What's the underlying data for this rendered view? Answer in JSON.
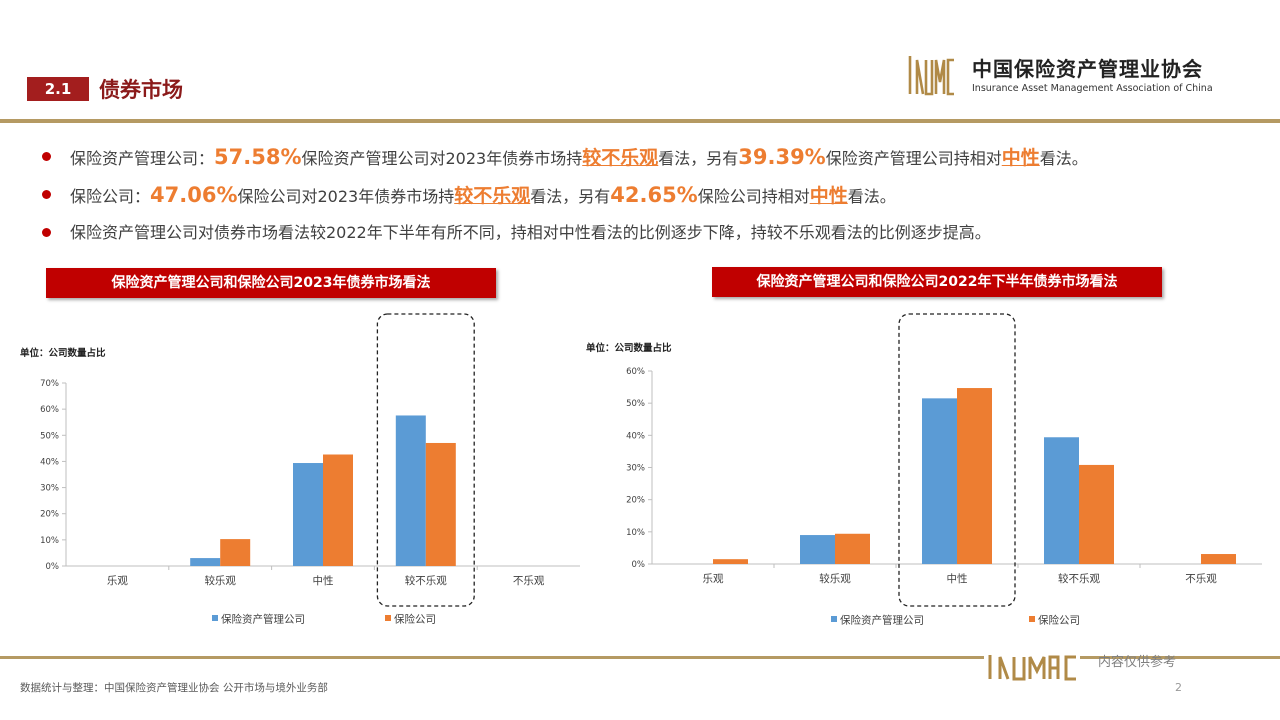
{
  "header": {
    "section_number": "2.1",
    "section_title": "债券市场",
    "logo_cn": "中国保险资产管理业协会",
    "logo_en": "Insurance Asset Management Association of China"
  },
  "bullets": [
    {
      "segments": [
        {
          "text": "保险资产管理公司：",
          "style": "plain"
        },
        {
          "text": "57.58%",
          "style": "num"
        },
        {
          "text": "保险资产管理公司对2023年债券市场持",
          "style": "plain"
        },
        {
          "text": "较不乐观",
          "style": "word"
        },
        {
          "text": "看法，另有",
          "style": "plain"
        },
        {
          "text": "39.39%",
          "style": "num"
        },
        {
          "text": "保险资产管理公司持相对",
          "style": "plain"
        },
        {
          "text": "中性",
          "style": "word"
        },
        {
          "text": "看法。",
          "style": "plain"
        }
      ]
    },
    {
      "segments": [
        {
          "text": "保险公司：",
          "style": "plain"
        },
        {
          "text": "47.06%",
          "style": "num"
        },
        {
          "text": "保险公司对2023年债券市场持",
          "style": "plain"
        },
        {
          "text": "较不乐观",
          "style": "word"
        },
        {
          "text": "看法，另有",
          "style": "plain"
        },
        {
          "text": "42.65%",
          "style": "num"
        },
        {
          "text": "保险公司持相对",
          "style": "plain"
        },
        {
          "text": "中性",
          "style": "word"
        },
        {
          "text": "看法。",
          "style": "plain"
        }
      ]
    },
    {
      "segments": [
        {
          "text": "保险资产管理公司对债券市场看法较2022年下半年有所不同，持相对中性看法的比例逐步下降，持较不乐观看法的比例逐步提高。",
          "style": "plain"
        }
      ]
    }
  ],
  "chart_data": [
    {
      "type": "bar",
      "title": "保险资产管理公司和保险公司2023年债券市场看法",
      "unit_label": "单位：公司数量占比",
      "categories": [
        "乐观",
        "较乐观",
        "中性",
        "较不乐观",
        "不乐观"
      ],
      "series": [
        {
          "name": "保险资产管理公司",
          "values": [
            0,
            3.03,
            39.39,
            57.58,
            0
          ],
          "color": "#5b9bd5"
        },
        {
          "name": "保险公司",
          "values": [
            0,
            10.29,
            42.65,
            47.06,
            0
          ],
          "color": "#ed7d31"
        }
      ],
      "ylim": [
        0,
        70
      ],
      "yticks": [
        "0%",
        "10%",
        "20%",
        "30%",
        "40%",
        "50%",
        "60%",
        "70%"
      ],
      "highlight_category": "较不乐观",
      "legend": "bottom"
    },
    {
      "type": "bar",
      "title": "保险资产管理公司和保险公司2022年下半年债券市场看法",
      "unit_label": "单位：公司数量占比",
      "categories": [
        "乐观",
        "较乐观",
        "中性",
        "较不乐观",
        "不乐观"
      ],
      "series": [
        {
          "name": "保险资产管理公司",
          "values": [
            0,
            9,
            51.5,
            39.4,
            0
          ],
          "color": "#5b9bd5"
        },
        {
          "name": "保险公司",
          "values": [
            1.5,
            9.4,
            54.7,
            30.8,
            3.1
          ],
          "color": "#ed7d31"
        }
      ],
      "ylim": [
        0,
        60
      ],
      "yticks": [
        "0%",
        "10%",
        "20%",
        "30%",
        "40%",
        "50%",
        "60%"
      ],
      "highlight_category": "中性",
      "legend": "bottom"
    }
  ],
  "footer": {
    "source": "数据统计与整理：中国保险资产管理业协会 公开市场与境外业务部",
    "note": "内容仅供参考",
    "page": "2"
  }
}
